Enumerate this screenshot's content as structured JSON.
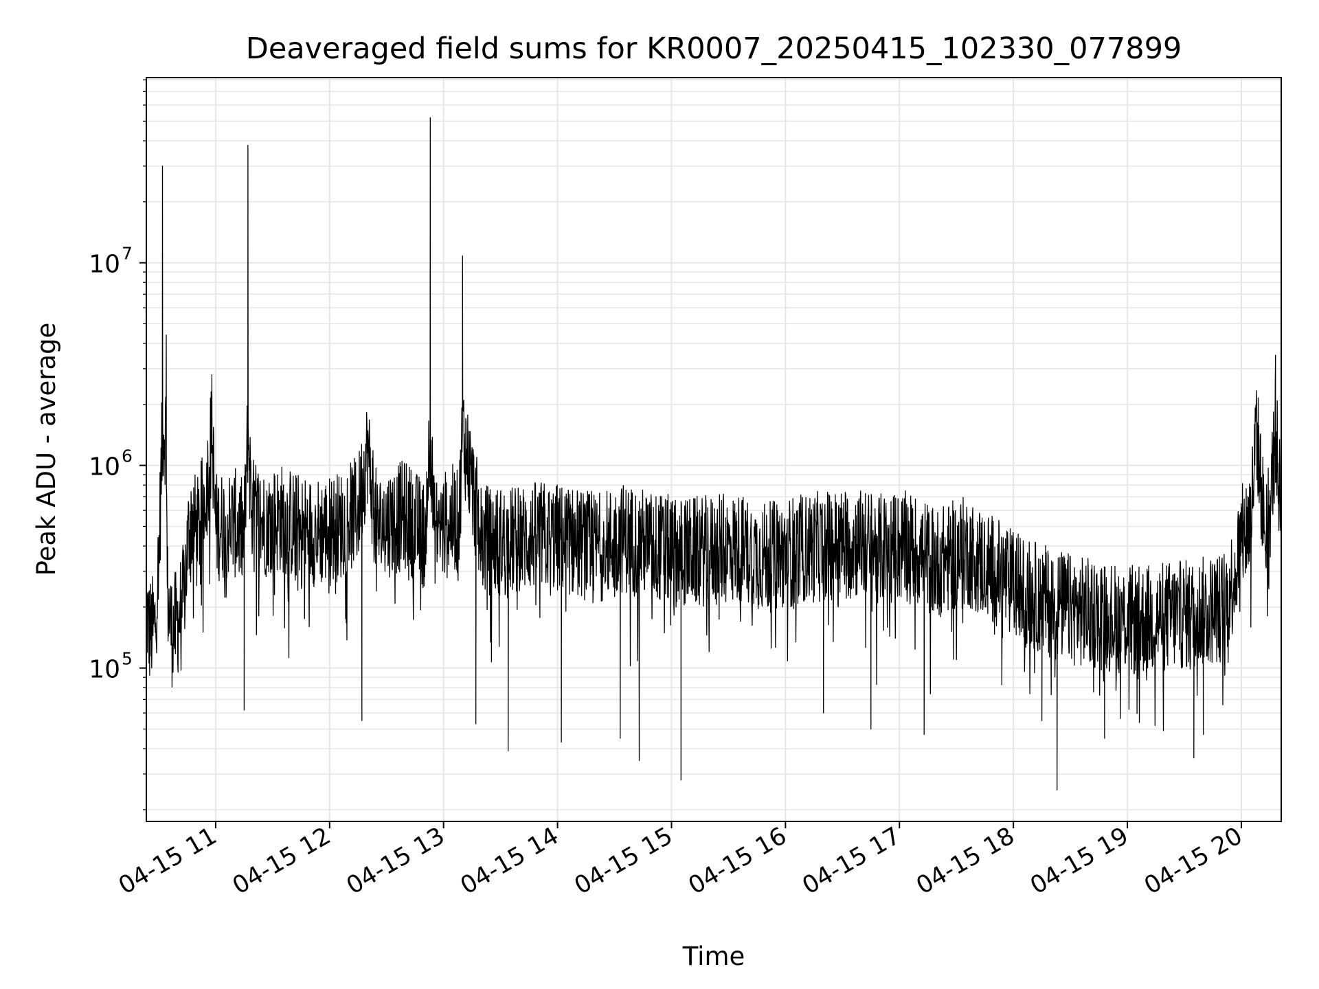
{
  "chart_data": {
    "type": "line",
    "title": "Deaveraged field sums for KR0007_20250415_102330_077899",
    "xlabel": "Time",
    "ylabel": "Peak ADU - average",
    "x_type": "datetime",
    "x_range": [
      "2025-04-15T10:23:30",
      "2025-04-15T20:21:00"
    ],
    "x_tick_labels": [
      "04-15 11",
      "04-15 12",
      "04-15 13",
      "04-15 14",
      "04-15 15",
      "04-15 16",
      "04-15 17",
      "04-15 18",
      "04-15 19",
      "04-15 20"
    ],
    "y_scale": "log",
    "ylim": [
      17500,
      82000000
    ],
    "y_tick_labels": [
      {
        "base": "10",
        "exp": "5",
        "value": 100000
      },
      {
        "base": "10",
        "exp": "6",
        "value": 1000000
      },
      {
        "base": "10",
        "exp": "7",
        "value": 10000000
      }
    ],
    "grid": true,
    "line_color": "#000000",
    "grid_color": "#e6e6e6",
    "series": [
      {
        "x": [
          "2025-04-15T10:23:30",
          "2025-04-15T10:25:00",
          "2025-04-15T10:28:00",
          "2025-04-15T10:30:00",
          "2025-04-15T10:32:00",
          "2025-04-15T10:34:00",
          "2025-04-15T10:34:30",
          "2025-04-15T10:35:00",
          "2025-04-15T10:37:00",
          "2025-04-15T10:40:00",
          "2025-04-15T10:43:00",
          "2025-04-15T10:46:00",
          "2025-04-15T10:48:00",
          "2025-04-15T10:50:00",
          "2025-04-15T10:53:00",
          "2025-04-15T10:56:00",
          "2025-04-15T10:58:00",
          "2025-04-15T11:00:00",
          "2025-04-15T11:10:00",
          "2025-04-15T11:15:00",
          "2025-04-15T11:17:00",
          "2025-04-15T11:19:00",
          "2025-04-15T11:25:00",
          "2025-04-15T11:35:00",
          "2025-04-15T11:45:00",
          "2025-04-15T11:55:00",
          "2025-04-15T12:05:00",
          "2025-04-15T12:15:00",
          "2025-04-15T12:20:00",
          "2025-04-15T12:23:00",
          "2025-04-15T12:25:00",
          "2025-04-15T12:30:00",
          "2025-04-15T12:40:00",
          "2025-04-15T12:50:00",
          "2025-04-15T12:53:00",
          "2025-04-15T12:55:00",
          "2025-04-15T13:00:00",
          "2025-04-15T13:06:00",
          "2025-04-15T13:08:00",
          "2025-04-15T13:10:00",
          "2025-04-15T13:20:00",
          "2025-04-15T13:35:00",
          "2025-04-15T13:50:00",
          "2025-04-15T14:05:00",
          "2025-04-15T14:20:00",
          "2025-04-15T14:35:00",
          "2025-04-15T14:50:00",
          "2025-04-15T15:05:00",
          "2025-04-15T15:20:00",
          "2025-04-15T15:35:00",
          "2025-04-15T15:50:00",
          "2025-04-15T16:05:00",
          "2025-04-15T16:20:00",
          "2025-04-15T16:35:00",
          "2025-04-15T16:50:00",
          "2025-04-15T17:05:00",
          "2025-04-15T17:20:00",
          "2025-04-15T17:35:00",
          "2025-04-15T17:50:00",
          "2025-04-15T18:05:00",
          "2025-04-15T18:20:00",
          "2025-04-15T18:35:00",
          "2025-04-15T18:50:00",
          "2025-04-15T19:05:00",
          "2025-04-15T19:20:00",
          "2025-04-15T19:35:00",
          "2025-04-15T19:50:00",
          "2025-04-15T19:55:00",
          "2025-04-15T20:00:00",
          "2025-04-15T20:05:00",
          "2025-04-15T20:08:00",
          "2025-04-15T20:12:00",
          "2025-04-15T20:15:00",
          "2025-04-15T20:18:00",
          "2025-04-15T20:21:00"
        ],
        "y": [
          200000,
          150000,
          160000,
          320000,
          30000000,
          4400000,
          260000,
          210000,
          150000,
          170000,
          220000,
          480000,
          560000,
          450000,
          600000,
          900000,
          2800000,
          500000,
          520000,
          450000,
          38000000,
          600000,
          520000,
          550000,
          480000,
          470000,
          500000,
          600000,
          1200000,
          650000,
          480000,
          520000,
          570000,
          450000,
          52000000,
          480000,
          500000,
          550000,
          480000,
          10800000,
          430000,
          420000,
          450000,
          430000,
          390000,
          440000,
          400000,
          370000,
          380000,
          390000,
          350000,
          380000,
          400000,
          420000,
          390000,
          400000,
          330000,
          380000,
          300000,
          240000,
          210000,
          190000,
          180000,
          170000,
          180000,
          185000,
          200000,
          260000,
          420000,
          550000,
          2100000,
          520000,
          600000,
          3500000,
          560000
        ],
        "spikes_down": [
          {
            "x": "2025-04-15T11:15:00",
            "y": 62000
          },
          {
            "x": "2025-04-15T12:17:00",
            "y": 55000
          },
          {
            "x": "2025-04-15T13:17:00",
            "y": 53000
          },
          {
            "x": "2025-04-15T13:34:00",
            "y": 39000
          },
          {
            "x": "2025-04-15T14:02:00",
            "y": 43000
          },
          {
            "x": "2025-04-15T14:33:00",
            "y": 45000
          },
          {
            "x": "2025-04-15T14:43:00",
            "y": 35000
          },
          {
            "x": "2025-04-15T15:05:00",
            "y": 28000
          },
          {
            "x": "2025-04-15T16:20:00",
            "y": 60000
          },
          {
            "x": "2025-04-15T16:45:00",
            "y": 50000
          },
          {
            "x": "2025-04-15T17:13:00",
            "y": 47000
          },
          {
            "x": "2025-04-15T18:15:00",
            "y": 55000
          },
          {
            "x": "2025-04-15T18:23:00",
            "y": 25000
          },
          {
            "x": "2025-04-15T18:48:00",
            "y": 45000
          },
          {
            "x": "2025-04-15T19:35:00",
            "y": 36000
          },
          {
            "x": "2025-04-15T19:40:00",
            "y": 47000
          }
        ]
      }
    ]
  }
}
